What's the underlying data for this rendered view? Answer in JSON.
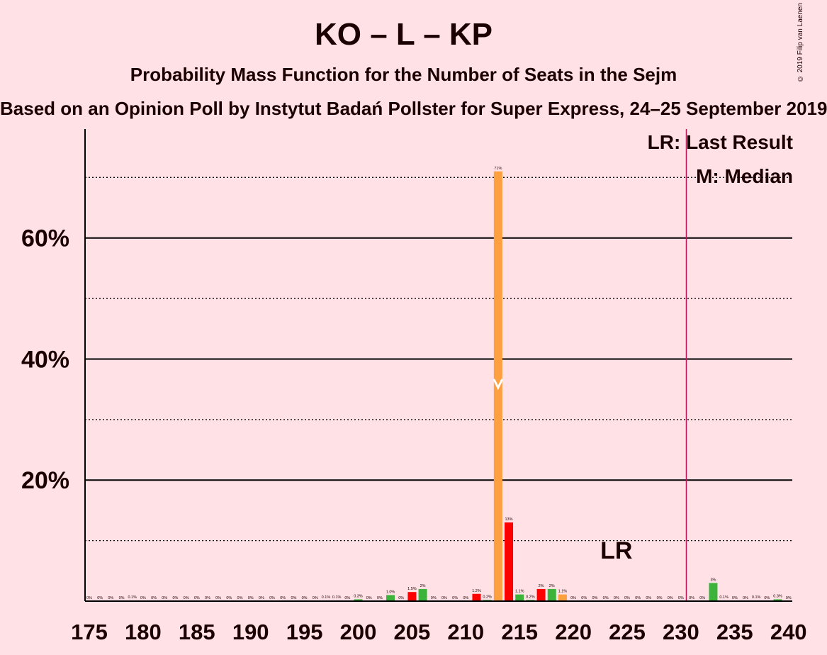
{
  "header": {
    "title": "KO – L – KP",
    "subtitle": "Probability Mass Function for the Number of Seats in the Sejm",
    "source": "Based on an Opinion Poll by Instytut Badań Pollster for Super Express, 24–25 September 2019",
    "copyright": "© 2019 Filip van Laenen"
  },
  "legend": {
    "last_result": "LR: Last Result",
    "median": "M: Median"
  },
  "chart_data": {
    "type": "bar",
    "xlim": [
      175,
      240
    ],
    "ylim": [
      0,
      0.78
    ],
    "x_ticks": [
      175,
      180,
      185,
      190,
      195,
      200,
      205,
      210,
      215,
      220,
      225,
      230,
      235,
      240
    ],
    "y_ticks_major": [
      0.2,
      0.4,
      0.6
    ],
    "y_ticks_major_labels": [
      "20%",
      "40%",
      "60%"
    ],
    "y_ticks_minor": [
      0.1,
      0.3,
      0.5,
      0.7
    ],
    "last_result": {
      "x": 231,
      "label": "LR",
      "label_x": 224
    },
    "median": {
      "x": 213,
      "label": "M"
    },
    "colors": {
      "red": "#FF0000",
      "green": "#3CB43C",
      "orange": "#FFA040",
      "lr_line": "#C0145A"
    },
    "bars": [
      {
        "x": 175,
        "value": 0.0,
        "label": "0%",
        "color": "green"
      },
      {
        "x": 176,
        "value": 0.0,
        "label": "0%",
        "color": "green"
      },
      {
        "x": 177,
        "value": 0.0,
        "label": "0%",
        "color": "green"
      },
      {
        "x": 178,
        "value": 0.0,
        "label": "0%",
        "color": "green"
      },
      {
        "x": 179,
        "value": 0.001,
        "label": "0.1%",
        "color": "green"
      },
      {
        "x": 180,
        "value": 0.0,
        "label": "0%",
        "color": "green"
      },
      {
        "x": 181,
        "value": 0.0,
        "label": "0%",
        "color": "green"
      },
      {
        "x": 182,
        "value": 0.0,
        "label": "0%",
        "color": "green"
      },
      {
        "x": 183,
        "value": 0.0,
        "label": "0%",
        "color": "green"
      },
      {
        "x": 184,
        "value": 0.0,
        "label": "0%",
        "color": "green"
      },
      {
        "x": 185,
        "value": 0.0,
        "label": "0%",
        "color": "green"
      },
      {
        "x": 186,
        "value": 0.0,
        "label": "0%",
        "color": "green"
      },
      {
        "x": 187,
        "value": 0.0,
        "label": "0%",
        "color": "green"
      },
      {
        "x": 188,
        "value": 0.0,
        "label": "0%",
        "color": "green"
      },
      {
        "x": 189,
        "value": 0.0,
        "label": "0%",
        "color": "green"
      },
      {
        "x": 190,
        "value": 0.0,
        "label": "0%",
        "color": "green"
      },
      {
        "x": 191,
        "value": 0.0,
        "label": "0%",
        "color": "green"
      },
      {
        "x": 192,
        "value": 0.0,
        "label": "0%",
        "color": "green"
      },
      {
        "x": 193,
        "value": 0.0,
        "label": "0%",
        "color": "green"
      },
      {
        "x": 194,
        "value": 0.0,
        "label": "0%",
        "color": "green"
      },
      {
        "x": 195,
        "value": 0.0,
        "label": "0%",
        "color": "green"
      },
      {
        "x": 196,
        "value": 0.0,
        "label": "0%",
        "color": "green"
      },
      {
        "x": 197,
        "value": 0.001,
        "label": "0.1%",
        "color": "green"
      },
      {
        "x": 198,
        "value": 0.001,
        "label": "0.1%",
        "color": "green"
      },
      {
        "x": 199,
        "value": 0.0,
        "label": "0%",
        "color": "green"
      },
      {
        "x": 200,
        "value": 0.003,
        "label": "0.3%",
        "color": "green"
      },
      {
        "x": 201,
        "value": 0.0,
        "label": "0%",
        "color": "green"
      },
      {
        "x": 202,
        "value": 0.0,
        "label": "0%",
        "color": "green"
      },
      {
        "x": 203,
        "value": 0.01,
        "label": "1.0%",
        "color": "green"
      },
      {
        "x": 204,
        "value": 0.0,
        "label": "0%",
        "color": "green"
      },
      {
        "x": 205,
        "value": 0.015,
        "label": "1.5%",
        "color": "red"
      },
      {
        "x": 206,
        "value": 0.02,
        "label": "2%",
        "color": "green"
      },
      {
        "x": 207,
        "value": 0.0,
        "label": "0%",
        "color": "green"
      },
      {
        "x": 208,
        "value": 0.0,
        "label": "0%",
        "color": "green"
      },
      {
        "x": 209,
        "value": 0.0,
        "label": "0%",
        "color": "green"
      },
      {
        "x": 210,
        "value": 0.0,
        "label": "0%",
        "color": "green"
      },
      {
        "x": 211,
        "value": 0.012,
        "label": "1.2%",
        "color": "red"
      },
      {
        "x": 212,
        "value": 0.002,
        "label": "0.2%",
        "color": "green"
      },
      {
        "x": 213,
        "value": 0.71,
        "label": "71%",
        "color": "orange"
      },
      {
        "x": 214,
        "value": 0.13,
        "label": "13%",
        "color": "red"
      },
      {
        "x": 215,
        "value": 0.011,
        "label": "1.1%",
        "color": "green"
      },
      {
        "x": 216,
        "value": 0.002,
        "label": "0.2%",
        "color": "green"
      },
      {
        "x": 217,
        "value": 0.02,
        "label": "2%",
        "color": "red"
      },
      {
        "x": 218,
        "value": 0.02,
        "label": "2%",
        "color": "green"
      },
      {
        "x": 219,
        "value": 0.011,
        "label": "1.1%",
        "color": "orange"
      },
      {
        "x": 220,
        "value": 0.0,
        "label": "0%",
        "color": "green"
      },
      {
        "x": 221,
        "value": 0.0,
        "label": "0%",
        "color": "green"
      },
      {
        "x": 222,
        "value": 0.0,
        "label": "0%",
        "color": "green"
      },
      {
        "x": 223,
        "value": 0.0,
        "label": "0%",
        "color": "green"
      },
      {
        "x": 224,
        "value": 0.0,
        "label": "0%",
        "color": "green"
      },
      {
        "x": 225,
        "value": 0.0,
        "label": "0%",
        "color": "green"
      },
      {
        "x": 226,
        "value": 0.0,
        "label": "0%",
        "color": "green"
      },
      {
        "x": 227,
        "value": 0.0,
        "label": "0%",
        "color": "green"
      },
      {
        "x": 228,
        "value": 0.0,
        "label": "0%",
        "color": "green"
      },
      {
        "x": 229,
        "value": 0.0,
        "label": "0%",
        "color": "green"
      },
      {
        "x": 230,
        "value": 0.0,
        "label": "0%",
        "color": "green"
      },
      {
        "x": 231,
        "value": 0.0,
        "label": "0%",
        "color": "green"
      },
      {
        "x": 232,
        "value": 0.0,
        "label": "0%",
        "color": "green"
      },
      {
        "x": 233,
        "value": 0.03,
        "label": "3%",
        "color": "green"
      },
      {
        "x": 234,
        "value": 0.001,
        "label": "0.1%",
        "color": "green"
      },
      {
        "x": 235,
        "value": 0.0,
        "label": "0%",
        "color": "green"
      },
      {
        "x": 236,
        "value": 0.0,
        "label": "0%",
        "color": "green"
      },
      {
        "x": 237,
        "value": 0.001,
        "label": "0.1%",
        "color": "green"
      },
      {
        "x": 238,
        "value": 0.0,
        "label": "0%",
        "color": "green"
      },
      {
        "x": 239,
        "value": 0.003,
        "label": "0.3%",
        "color": "green"
      },
      {
        "x": 240,
        "value": 0.0,
        "label": "0%",
        "color": "green"
      }
    ]
  }
}
